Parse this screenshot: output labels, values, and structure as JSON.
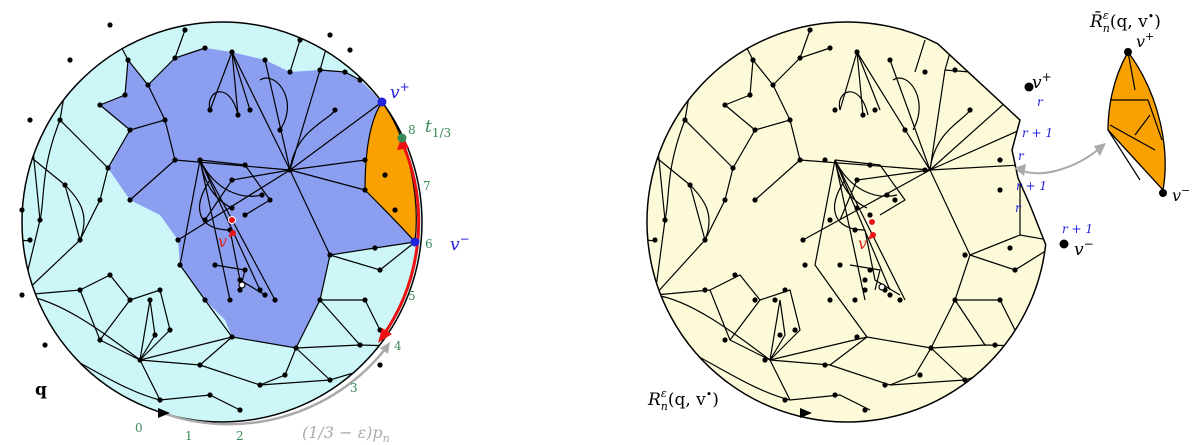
{
  "left": {
    "map_label": "q",
    "v_plus": "v",
    "v_plus_sup": "+",
    "v_minus": "v",
    "v_minus_sup": "−",
    "t_label": "t",
    "t_sub": "1/3",
    "v_dot": "v",
    "v_dot_sup": "•",
    "boundary_numbers": [
      "0",
      "1",
      "2",
      "3",
      "4",
      "5",
      "6",
      "7",
      "8"
    ],
    "arc_label": "(1/3 − ε)p",
    "arc_label_sub": "n",
    "colors": {
      "outer": "#ccf6f8",
      "region": "#8c9ef0",
      "hull": "#f8a100",
      "red": "#ee1111",
      "green": "#3a8a5a",
      "blue": "#2222dd"
    }
  },
  "right": {
    "map_label": "R",
    "map_label_sup": "ε",
    "map_label_sub": "n",
    "map_label_args": "(q, v",
    "map_label_args_sup": "•",
    "map_label_close": ")",
    "v_plus": "v",
    "v_plus_sup": "+",
    "v_minus": "v",
    "v_minus_sup": "−",
    "v_dot": "v",
    "v_dot_sup": "•",
    "r_labels": [
      "r",
      "r + 1",
      "r",
      "r + 1",
      "r",
      "r + 1"
    ],
    "hull_label": "R̄",
    "hull_label_sup": "ε",
    "hull_label_sub": "n",
    "hull_label_args": "(q, v",
    "hull_label_args_sup": "•",
    "hull_label_close": ")",
    "colors": {
      "fill": "#fcfad8",
      "hull": "#f8a100",
      "blue": "#2222dd"
    }
  }
}
